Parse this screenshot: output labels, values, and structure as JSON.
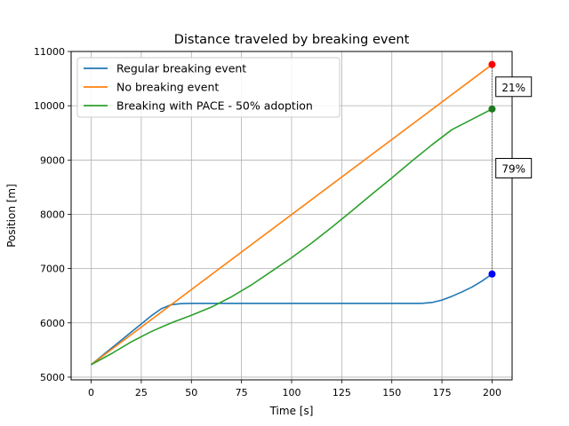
{
  "chart_data": {
    "type": "line",
    "title": "Distance traveled by breaking event",
    "xlabel": "Time [s]",
    "ylabel": "Position [m]",
    "xlim": [
      -10,
      210
    ],
    "ylim": [
      4950,
      11000
    ],
    "xticks": [
      0,
      25,
      50,
      75,
      100,
      125,
      150,
      175,
      200
    ],
    "yticks": [
      5000,
      6000,
      7000,
      8000,
      9000,
      10000,
      11000
    ],
    "grid": true,
    "legend_position": "upper-left",
    "series": [
      {
        "name": "Regular breaking event",
        "color": "#1f77b4",
        "x": [
          0,
          10,
          20,
          30,
          35,
          40,
          45,
          50,
          60,
          100,
          150,
          165,
          170,
          175,
          180,
          185,
          190,
          195,
          200
        ],
        "y": [
          5230,
          5530,
          5830,
          6130,
          6260,
          6335,
          6355,
          6360,
          6360,
          6360,
          6360,
          6360,
          6375,
          6420,
          6490,
          6570,
          6660,
          6770,
          6900
        ]
      },
      {
        "name": "No breaking event",
        "color": "#ff7f0e",
        "x": [
          0,
          200
        ],
        "y": [
          5230,
          10760
        ]
      },
      {
        "name": "Breaking with PACE - 50% adoption",
        "color": "#2ca02c",
        "x": [
          0,
          10,
          20,
          30,
          40,
          50,
          60,
          70,
          80,
          90,
          100,
          110,
          120,
          130,
          140,
          150,
          160,
          170,
          180,
          190,
          200
        ],
        "y": [
          5230,
          5430,
          5650,
          5840,
          6000,
          6140,
          6290,
          6480,
          6700,
          6950,
          7200,
          7470,
          7760,
          8060,
          8370,
          8670,
          8980,
          9280,
          9560,
          9750,
          9940
        ]
      }
    ],
    "markers": [
      {
        "x": 200,
        "y": 10760,
        "color": "#ff0000"
      },
      {
        "x": 200,
        "y": 9940,
        "color": "#1f7a1f"
      },
      {
        "x": 200,
        "y": 6900,
        "color": "#0000ff"
      }
    ],
    "annotations": [
      {
        "text": "21%",
        "x": 201,
        "y": 10350
      },
      {
        "text": "79%",
        "x": 201,
        "y": 8850
      }
    ],
    "connector": {
      "x": 200,
      "y_from": 6900,
      "y_to": 10760
    }
  }
}
